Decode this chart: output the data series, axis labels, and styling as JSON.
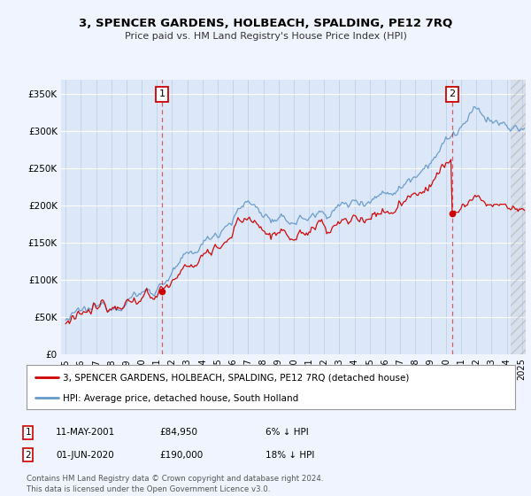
{
  "title": "3, SPENCER GARDENS, HOLBEACH, SPALDING, PE12 7RQ",
  "subtitle": "Price paid vs. HM Land Registry's House Price Index (HPI)",
  "legend_line1": "3, SPENCER GARDENS, HOLBEACH, SPALDING, PE12 7RQ (detached house)",
  "legend_line2": "HPI: Average price, detached house, South Holland",
  "annotation1_date": "11-MAY-2001",
  "annotation1_price": "£84,950",
  "annotation1_pct": "6% ↓ HPI",
  "annotation2_date": "01-JUN-2020",
  "annotation2_price": "£190,000",
  "annotation2_pct": "18% ↓ HPI",
  "footer": "Contains HM Land Registry data © Crown copyright and database right 2024.\nThis data is licensed under the Open Government Licence v3.0.",
  "price_line_color": "#cc0000",
  "hpi_line_color": "#6699cc",
  "background_color": "#f0f4ff",
  "plot_bg_color": "#dce8f8",
  "ylim": [
    0,
    370000
  ],
  "yticks": [
    0,
    50000,
    100000,
    150000,
    200000,
    250000,
    300000,
    350000
  ],
  "ytick_labels": [
    "£0",
    "£50K",
    "£100K",
    "£150K",
    "£200K",
    "£250K",
    "£300K",
    "£350K"
  ],
  "year_start": 1995,
  "year_end": 2025,
  "sale1_year": 2001,
  "sale1_month": 5,
  "sale1_price": 84950,
  "sale2_year": 2020,
  "sale2_month": 6,
  "sale2_price": 190000
}
